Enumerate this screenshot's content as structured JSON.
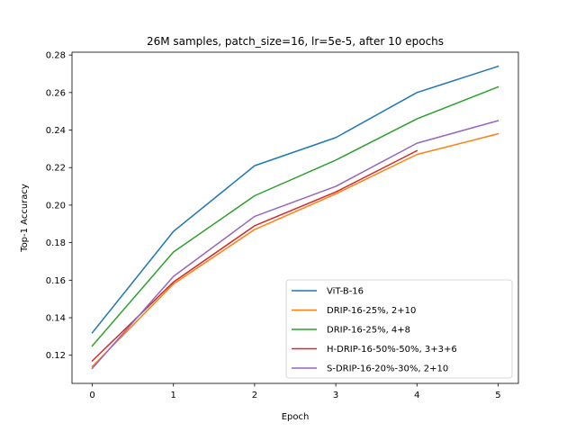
{
  "chart_data": {
    "type": "line",
    "title": "26M samples, patch_size=16, lr=5e-5, after 10 epochs",
    "xlabel": "Epoch",
    "ylabel": "Top-1 Accuracy",
    "xlim": [
      -0.25,
      5.25
    ],
    "ylim": [
      0.105,
      0.2815
    ],
    "xticks": [
      0,
      1,
      2,
      3,
      4,
      5
    ],
    "xtick_labels": [
      "0",
      "1",
      "2",
      "3",
      "4",
      "5"
    ],
    "yticks": [
      0.12,
      0.14,
      0.16,
      0.18,
      0.2,
      0.22,
      0.24,
      0.26,
      0.28
    ],
    "ytick_labels": [
      "0.12",
      "0.14",
      "0.16",
      "0.18",
      "0.20",
      "0.22",
      "0.24",
      "0.26",
      "0.28"
    ],
    "grid": false,
    "legend_position": "lower-right",
    "series": [
      {
        "name": "ViT-B-16",
        "color": "#1f77b4",
        "x": [
          0,
          1,
          2,
          3,
          4,
          5
        ],
        "y": [
          0.132,
          0.186,
          0.221,
          0.236,
          0.26,
          0.274
        ]
      },
      {
        "name": "DRIP-16-25%, 2+10",
        "color": "#ff7f0e",
        "x": [
          0,
          1,
          2,
          3,
          4,
          5
        ],
        "y": [
          0.114,
          0.158,
          0.187,
          0.206,
          0.227,
          0.238
        ]
      },
      {
        "name": "DRIP-16-25%, 4+8",
        "color": "#2ca02c",
        "x": [
          0,
          1,
          2,
          3,
          4,
          5
        ],
        "y": [
          0.125,
          0.175,
          0.205,
          0.224,
          0.246,
          0.263
        ]
      },
      {
        "name": "H-DRIP-16-50%-50%, 3+3+6",
        "color": "#d62728",
        "x": [
          0,
          1,
          2,
          3,
          4
        ],
        "y": [
          0.117,
          0.159,
          0.189,
          0.207,
          0.229
        ]
      },
      {
        "name": "S-DRIP-16-20%-30%, 2+10",
        "color": "#9467bd",
        "x": [
          0,
          1,
          2,
          3,
          4,
          5
        ],
        "y": [
          0.113,
          0.162,
          0.194,
          0.21,
          0.233,
          0.245
        ]
      }
    ]
  }
}
